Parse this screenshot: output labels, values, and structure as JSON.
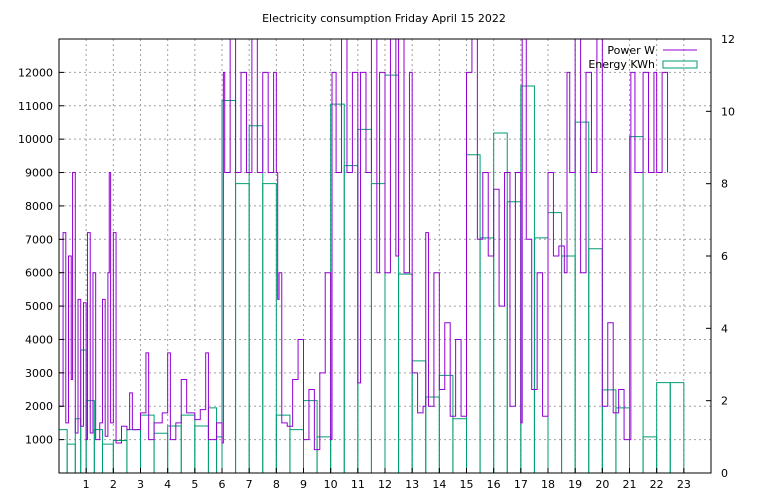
{
  "chart_data": {
    "type": "line",
    "title": "Electricity consumption Friday April 15 2022",
    "xlabel": "",
    "ylabel": "",
    "y2label": "",
    "xlim": [
      0,
      24
    ],
    "ylim": [
      0,
      13000
    ],
    "y2lim": [
      0,
      12
    ],
    "x_ticks": [
      1,
      2,
      3,
      4,
      5,
      6,
      7,
      8,
      9,
      10,
      11,
      12,
      13,
      14,
      15,
      16,
      17,
      18,
      19,
      20,
      21,
      22,
      23
    ],
    "x_tick_labels": [
      "1",
      "2",
      "3",
      "4",
      "5",
      "6",
      "7",
      "8",
      "9",
      "10",
      "11",
      "12",
      "13",
      "14",
      "15",
      "16",
      "17",
      "18",
      "19",
      "20",
      "21",
      "22",
      "23"
    ],
    "y_ticks": [
      1000,
      2000,
      3000,
      4000,
      5000,
      6000,
      7000,
      8000,
      9000,
      10000,
      11000,
      12000
    ],
    "y_tick_labels": [
      "1000",
      "2000",
      "3000",
      "4000",
      "5000",
      "6000",
      "7000",
      "8000",
      "9000",
      "10000",
      "11000",
      "12000"
    ],
    "y2_ticks": [
      0,
      2,
      4,
      6,
      8,
      10,
      12
    ],
    "y2_tick_labels": [
      "0",
      "2",
      "4",
      "6",
      "8",
      "10",
      "12"
    ],
    "grid": true,
    "legend_position": "top-right",
    "colors": {
      "power": "#9400d3",
      "energy": "#009e73",
      "grid": "#a0a0a0",
      "axis": "#000000"
    },
    "series": [
      {
        "name": "Power W",
        "axis": "y1",
        "style": "line",
        "points": [
          [
            0.0,
            2000
          ],
          [
            0.15,
            7200
          ],
          [
            0.25,
            1500
          ],
          [
            0.35,
            6500
          ],
          [
            0.45,
            2800
          ],
          [
            0.5,
            9000
          ],
          [
            0.6,
            1200
          ],
          [
            0.7,
            5200
          ],
          [
            0.8,
            1400
          ],
          [
            0.9,
            5100
          ],
          [
            1.0,
            1000
          ],
          [
            1.05,
            7200
          ],
          [
            1.15,
            1200
          ],
          [
            1.25,
            6000
          ],
          [
            1.35,
            1000
          ],
          [
            1.5,
            1500
          ],
          [
            1.6,
            5200
          ],
          [
            1.7,
            1100
          ],
          [
            1.8,
            6000
          ],
          [
            1.85,
            9000
          ],
          [
            1.9,
            1500
          ],
          [
            2.0,
            7200
          ],
          [
            2.1,
            900
          ],
          [
            2.3,
            1400
          ],
          [
            2.5,
            1300
          ],
          [
            2.6,
            2400
          ],
          [
            2.7,
            1300
          ],
          [
            3.0,
            1800
          ],
          [
            3.2,
            3600
          ],
          [
            3.3,
            1000
          ],
          [
            3.5,
            1500
          ],
          [
            3.8,
            1800
          ],
          [
            4.0,
            3600
          ],
          [
            4.1,
            1000
          ],
          [
            4.3,
            1500
          ],
          [
            4.5,
            2800
          ],
          [
            4.7,
            1800
          ],
          [
            5.0,
            1600
          ],
          [
            5.2,
            1900
          ],
          [
            5.4,
            3600
          ],
          [
            5.5,
            1000
          ],
          [
            5.8,
            1500
          ],
          [
            6.0,
            900
          ],
          [
            6.05,
            12000
          ],
          [
            6.1,
            9000
          ],
          [
            6.3,
            13000
          ],
          [
            6.5,
            9000
          ],
          [
            6.7,
            12000
          ],
          [
            6.9,
            9000
          ],
          [
            7.1,
            13000
          ],
          [
            7.3,
            9000
          ],
          [
            7.5,
            12000
          ],
          [
            7.7,
            9000
          ],
          [
            7.9,
            12000
          ],
          [
            8.0,
            9000
          ],
          [
            8.05,
            5200
          ],
          [
            8.1,
            6000
          ],
          [
            8.2,
            1500
          ],
          [
            8.4,
            1400
          ],
          [
            8.6,
            2800
          ],
          [
            8.8,
            4000
          ],
          [
            9.0,
            1000
          ],
          [
            9.2,
            2500
          ],
          [
            9.4,
            700
          ],
          [
            9.6,
            3000
          ],
          [
            9.8,
            6000
          ],
          [
            10.0,
            1000
          ],
          [
            10.05,
            12000
          ],
          [
            10.2,
            9000
          ],
          [
            10.4,
            13000
          ],
          [
            10.6,
            9000
          ],
          [
            10.8,
            12000
          ],
          [
            11.0,
            2700
          ],
          [
            11.1,
            12000
          ],
          [
            11.3,
            9000
          ],
          [
            11.5,
            13000
          ],
          [
            11.7,
            6000
          ],
          [
            11.8,
            12000
          ],
          [
            12.0,
            6000
          ],
          [
            12.2,
            13000
          ],
          [
            12.4,
            6500
          ],
          [
            12.5,
            13000
          ],
          [
            12.7,
            6000
          ],
          [
            12.9,
            12000
          ],
          [
            13.0,
            3000
          ],
          [
            13.2,
            1800
          ],
          [
            13.4,
            2000
          ],
          [
            13.5,
            7200
          ],
          [
            13.6,
            2000
          ],
          [
            13.8,
            6000
          ],
          [
            14.0,
            2500
          ],
          [
            14.2,
            4500
          ],
          [
            14.4,
            1700
          ],
          [
            14.6,
            4000
          ],
          [
            14.8,
            1700
          ],
          [
            15.0,
            12000
          ],
          [
            15.2,
            13000
          ],
          [
            15.4,
            7000
          ],
          [
            15.6,
            9000
          ],
          [
            15.8,
            6500
          ],
          [
            16.0,
            8500
          ],
          [
            16.2,
            5000
          ],
          [
            16.4,
            9000
          ],
          [
            16.6,
            2000
          ],
          [
            16.8,
            9000
          ],
          [
            17.0,
            1500
          ],
          [
            17.05,
            13000
          ],
          [
            17.2,
            7000
          ],
          [
            17.4,
            2500
          ],
          [
            17.6,
            6000
          ],
          [
            17.8,
            1700
          ],
          [
            18.0,
            9000
          ],
          [
            18.2,
            6500
          ],
          [
            18.4,
            6800
          ],
          [
            18.6,
            6000
          ],
          [
            18.7,
            12000
          ],
          [
            18.8,
            9000
          ],
          [
            19.0,
            13000
          ],
          [
            19.2,
            6000
          ],
          [
            19.4,
            12000
          ],
          [
            19.6,
            9000
          ],
          [
            19.8,
            13000
          ],
          [
            20.0,
            2000
          ],
          [
            20.2,
            4500
          ],
          [
            20.4,
            1800
          ],
          [
            20.6,
            2500
          ],
          [
            20.8,
            1000
          ],
          [
            21.0,
            1000
          ],
          [
            21.05,
            12000
          ],
          [
            21.2,
            9000
          ],
          [
            21.5,
            12000
          ],
          [
            21.7,
            9000
          ],
          [
            21.9,
            12000
          ],
          [
            22.0,
            9000
          ],
          [
            22.2,
            12000
          ],
          [
            22.4,
            9000
          ]
        ]
      },
      {
        "name": "Energy KWh",
        "axis": "y2",
        "style": "steps",
        "points": [
          [
            0.0,
            1.2
          ],
          [
            0.3,
            0.8
          ],
          [
            0.6,
            1.5
          ],
          [
            0.8,
            3.4
          ],
          [
            1.0,
            2.0
          ],
          [
            1.3,
            1.2
          ],
          [
            1.6,
            0.8
          ],
          [
            2.0,
            0.9
          ],
          [
            2.5,
            1.2
          ],
          [
            3.0,
            1.6
          ],
          [
            3.5,
            1.1
          ],
          [
            4.0,
            1.3
          ],
          [
            4.5,
            1.6
          ],
          [
            5.0,
            1.3
          ],
          [
            5.5,
            1.8
          ],
          [
            5.8,
            1.0
          ],
          [
            6.0,
            10.3
          ],
          [
            6.5,
            8.0
          ],
          [
            7.0,
            9.6
          ],
          [
            7.5,
            8.0
          ],
          [
            8.0,
            1.6
          ],
          [
            8.5,
            1.2
          ],
          [
            9.0,
            2.0
          ],
          [
            9.5,
            1.0
          ],
          [
            10.0,
            10.2
          ],
          [
            10.5,
            8.5
          ],
          [
            11.0,
            9.5
          ],
          [
            11.5,
            8.0
          ],
          [
            12.0,
            11.0
          ],
          [
            12.5,
            5.5
          ],
          [
            13.0,
            3.1
          ],
          [
            13.5,
            2.1
          ],
          [
            14.0,
            2.7
          ],
          [
            14.5,
            1.5
          ],
          [
            15.0,
            8.8
          ],
          [
            15.5,
            6.5
          ],
          [
            16.0,
            9.4
          ],
          [
            16.5,
            7.5
          ],
          [
            17.0,
            10.7
          ],
          [
            17.5,
            6.5
          ],
          [
            18.0,
            7.2
          ],
          [
            18.5,
            6.0
          ],
          [
            19.0,
            9.7
          ],
          [
            19.5,
            6.2
          ],
          [
            20.0,
            2.3
          ],
          [
            20.5,
            1.8
          ],
          [
            21.0,
            9.3
          ],
          [
            21.5,
            1.0
          ],
          [
            22.0,
            2.5
          ],
          [
            22.5,
            2.5
          ]
        ]
      }
    ]
  }
}
